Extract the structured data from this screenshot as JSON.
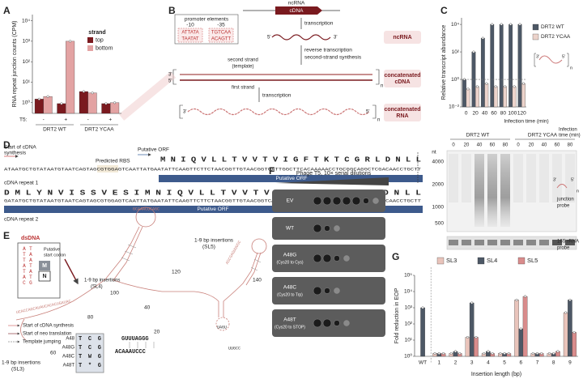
{
  "panel_labels": [
    "A",
    "B",
    "C",
    "D",
    "E",
    "F",
    "G"
  ],
  "chart_data": [
    {
      "type": "bar",
      "y_label": "RNA repeat junction counts (CPM)",
      "x_label": "T5:",
      "categories": [
        "-",
        "+",
        "-",
        "+"
      ],
      "groups": [
        "DRT2 WT",
        "DRT2 YCAA"
      ],
      "legend_title": "strand",
      "series": [
        {
          "name": "top",
          "color": "#7a1a1f",
          "values": [
            1.5,
            0.9,
            3.5,
            0.9
          ]
        },
        {
          "name": "bottom",
          "color": "#e3a3a3",
          "values": [
            2,
            1000,
            3,
            1
          ]
        }
      ],
      "log_scale": true,
      "ylim": [
        0.3,
        20000
      ],
      "yticks": [
        {
          "value": 1,
          "label": "10⁰"
        },
        {
          "value": 10,
          "label": "10¹"
        },
        {
          "value": 100,
          "label": "10²"
        },
        {
          "value": 1000,
          "label": "10³"
        },
        {
          "value": 10000,
          "label": "10⁴"
        }
      ]
    },
    {
      "type": "bar",
      "y_label": "Relative transcript abundance",
      "x_label": "Infection time (min)",
      "categories": [
        "0",
        "20",
        "40",
        "60",
        "80",
        "100",
        "120"
      ],
      "series": [
        {
          "name": "DRT2 WT",
          "color": "#4d5866",
          "values": [
            1,
            100,
            1000,
            10000,
            10000,
            10000,
            10000
          ]
        },
        {
          "name": "DRT2 YCAA",
          "color": "#ecd3cb",
          "values": [
            0.2,
            0.3,
            0.5,
            0.3,
            0.3,
            0.3,
            0.5
          ]
        }
      ],
      "log_scale": true,
      "ylim": [
        0.01,
        30000
      ],
      "reference_line": 1,
      "annotations": [
        "3'",
        "5'",
        "n"
      ],
      "yticks": [
        {
          "value": 0.01,
          "label": "10⁻²"
        },
        {
          "value": 1,
          "label": "10⁰"
        },
        {
          "value": 100,
          "label": "10²"
        },
        {
          "value": 10000,
          "label": "10⁴"
        }
      ]
    },
    {
      "type": "bar",
      "y_label": "Fold reduction in EOP",
      "x_label": "Insertion length (bp)",
      "categories": [
        "WT",
        "1",
        "2",
        "3",
        "4",
        "5",
        "6",
        "7",
        "8",
        "9"
      ],
      "series": [
        {
          "name": "SL3",
          "color": "#e9c4bb",
          "values": [
            null,
            1.5,
            1.5,
            15,
            1.5,
            1.5,
            3000,
            1.5,
            1.5,
            500
          ]
        },
        {
          "name": "SL4",
          "color": "#4d5866",
          "values": [
            1000,
            1.5,
            2,
            2000,
            2,
            1.5,
            50,
            1.5,
            1.5,
            3000
          ]
        },
        {
          "name": "SL5",
          "color": "#d98c8c",
          "values": [
            null,
            1.5,
            1.5,
            15,
            1.5,
            1.5,
            5000,
            1.5,
            2,
            30
          ]
        }
      ],
      "log_scale": true,
      "ylim": [
        1,
        100000
      ],
      "yticks": [
        {
          "value": 1,
          "label": "10⁰"
        },
        {
          "value": 10,
          "label": "10¹"
        },
        {
          "value": 100,
          "label": "10²"
        },
        {
          "value": 1000,
          "label": "10³"
        },
        {
          "value": 10000,
          "label": "10⁴"
        },
        {
          "value": 100000,
          "label": "10⁵"
        }
      ]
    }
  ],
  "gel": {
    "groups": [
      "DRT2 WT",
      "DRT2 YCAA"
    ],
    "lanes": [
      [
        "0",
        "20",
        "40",
        "60",
        "80"
      ],
      [
        "0",
        "20",
        "40",
        "60",
        "80"
      ]
    ],
    "time_label": [
      "Infection",
      "time (min)"
    ],
    "unit": "nt",
    "markers": [
      "4000",
      "2000",
      "1000",
      "500"
    ],
    "probe": [
      "junction",
      "probe"
    ],
    "probe_ends": [
      "3'",
      "5'",
      "n"
    ],
    "rrna": [
      "16S rRNA",
      "probe"
    ]
  },
  "B": {
    "promoter_title": "promoter elements",
    "minus10": "-10",
    "minus35": "-35",
    "seq10": [
      "ATTATA",
      "TAATAT"
    ],
    "seq35": [
      "TGTCAA",
      "ACAGTT"
    ],
    "gene": "cDNA",
    "gene_name": "ncRNA",
    "step1": "transcription",
    "step2": "reverse transcription",
    "step3": "second-strand synthesis",
    "second_strand": [
      "second strand",
      "(template)"
    ],
    "first_strand": "first strand",
    "step4": "transcription",
    "tags": [
      [
        "ncRNA"
      ],
      [
        "concatenated",
        "cDNA"
      ],
      [
        "concatenated",
        "RNA"
      ]
    ],
    "ends": [
      "5'",
      "3'",
      "3'",
      "5'",
      "3'",
      "5'"
    ],
    "n": [
      "n",
      "n"
    ]
  },
  "D": {
    "start": [
      "Start of cDNA",
      "synthesis"
    ],
    "rbs": "Predicted RBS",
    "orf_arrow": "Putative ORF",
    "aa1": "M N I Q V L L T V V T V I G F T K T C G R L D N L L",
    "dna1": "ATAATGCTGTATAATGTAATCAGTAGCGTGGAGTCAATTATGAATATTCAAGTTCTTCTAACGGTTGTAACGGTCATTGGCTTCACAAAAACCTGCGGCAGGCTCGACAACCTGCTT",
    "bar1": "Putative ORF",
    "repeat1": "cDNA repeat 1",
    "aa2": "D M L Y N V I S S V E S I M N I Q V L L T V V T V I G F T K T C G R L D N L L",
    "dna2": "GATATGCTGTATAATGTAATCAGTAGCGTGGAGTCAATTATGAATATTCAAGTTCTTCTAACGGTTGTAACGGTCATTGGCTTCACAAAAACCTGCGGCAGGCTCGACAACCTGCTT",
    "bar2": "Putative ORF",
    "repeat2": "cDNA repeat 2"
  },
  "E": {
    "dsdna": "dsDNA",
    "dsdna_top": "ATTATAC",
    "dsdna_bottom": "TAATATG",
    "start_codon": [
      "Putative",
      "start codon"
    ],
    "codon_aa": [
      "M",
      "N"
    ],
    "insertions": [
      [
        "1-9 bp insertions",
        "(SL5)"
      ],
      [
        "1-9 bp insertions",
        "(SL4)"
      ],
      [
        "1-9 bp insertions",
        "(SL3)"
      ]
    ],
    "positions": [
      "20",
      "40",
      "60",
      "80",
      "100",
      "120",
      "140"
    ],
    "legend": [
      "Start of cDNA synthesis",
      "Start of neo translation",
      "Template jumping"
    ],
    "stem": [
      "GUUUAGGG",
      "ACAAAUCCC"
    ],
    "loops": [
      "UCACCAGCAUAUCACACUGAUAC",
      "GCAAACUCAGC",
      "AGCGAGUUUGC",
      "UAGU",
      "UUGCC"
    ],
    "mutations": [
      [
        "A48",
        "TCG"
      ],
      [
        "A48G",
        "TCG"
      ],
      [
        "A48C",
        "TWG"
      ],
      [
        "A48T",
        "T*G"
      ]
    ]
  },
  "F": {
    "title": "Phage T5, 10× serial dilutions",
    "rows": [
      [
        "EV"
      ],
      [
        "WT"
      ],
      [
        "A48G",
        "(Cys20 to Cys)"
      ],
      [
        "A48C",
        "(Cys20 to Trp)"
      ],
      [
        "A48T",
        "(Cys20 to STOP)"
      ]
    ]
  }
}
